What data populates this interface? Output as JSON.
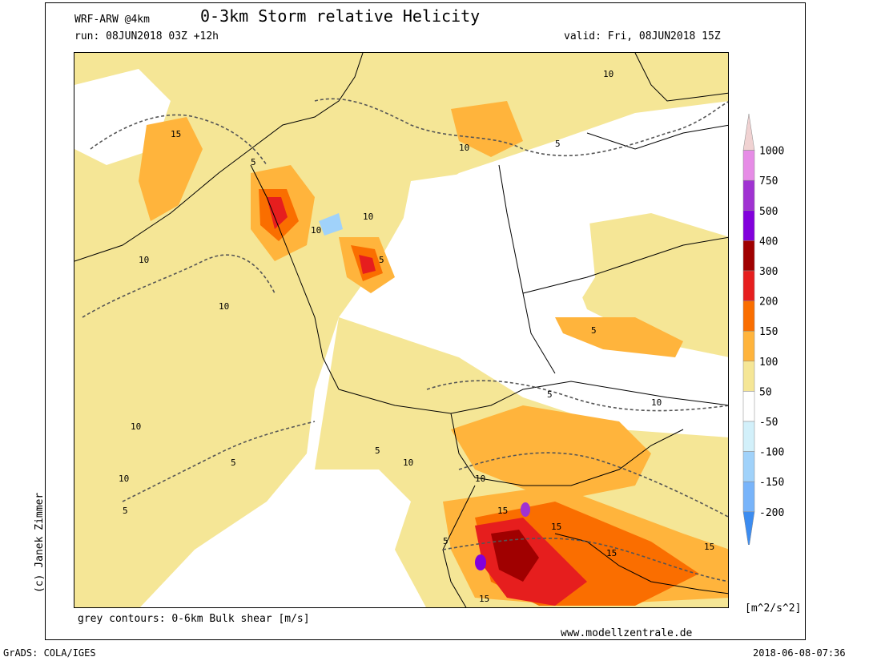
{
  "header": {
    "model": "WRF-ARW @4km",
    "title": "0-3km Storm relative Helicity",
    "run": "run: 08JUN2018 03Z +12h",
    "valid": "valid: Fri, 08JUN2018 15Z"
  },
  "credit": "(c) Janek Zimmer",
  "footer": {
    "contours_note": "grey contours: 0-6km Bulk shear [m/s]",
    "website": "www.modellzentrale.de",
    "grads": "GrADS: COLA/IGES",
    "timestamp": "2018-06-08-07:36"
  },
  "colorbar": {
    "unit": "[m^2/s^2]",
    "levels": [
      {
        "label": "1000",
        "color": "#f0d2d2"
      },
      {
        "label": "750",
        "color": "#e68ce6"
      },
      {
        "label": "500",
        "color": "#a032d2"
      },
      {
        "label": "400",
        "color": "#8200dc"
      },
      {
        "label": "300",
        "color": "#a00000"
      },
      {
        "label": "200",
        "color": "#e61e1e"
      },
      {
        "label": "150",
        "color": "#fa6e00"
      },
      {
        "label": "100",
        "color": "#ffb43c"
      },
      {
        "label": "50",
        "color": "#f5e696"
      },
      {
        "label": "-50",
        "color": "#ffffff"
      },
      {
        "label": "-100",
        "color": "#d2f0fa"
      },
      {
        "label": "-150",
        "color": "#a0d2fa"
      },
      {
        "label": "-200",
        "color": "#78b4fa"
      },
      {
        "label": "",
        "color": "#3c8cf0"
      }
    ]
  },
  "contour_labels": [
    "5",
    "10",
    "15"
  ]
}
